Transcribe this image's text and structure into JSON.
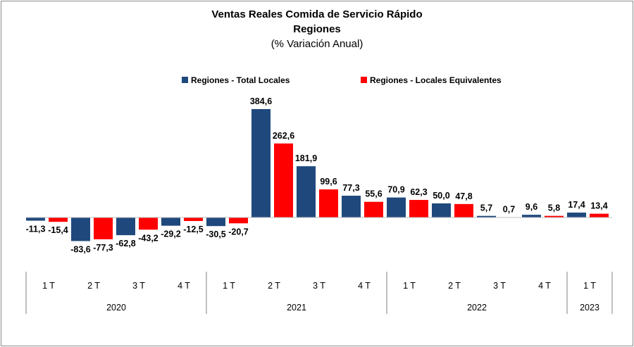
{
  "chart_data": {
    "type": "bar",
    "title": "Ventas Reales Comida de Servicio Rápido",
    "title_line2": "Regiones",
    "subtitle": "(% Variación Anual)",
    "legend_position": "top-center",
    "grid": false,
    "categories": [
      "1 T",
      "2 T",
      "3 T",
      "4 T",
      "1 T",
      "2 T",
      "3 T",
      "4 T",
      "1 T",
      "2 T",
      "3 T",
      "4 T",
      "1 T"
    ],
    "years": [
      {
        "label": "2020",
        "quarters": 4
      },
      {
        "label": "2021",
        "quarters": 4
      },
      {
        "label": "2022",
        "quarters": 4
      },
      {
        "label": "2023",
        "quarters": 1
      }
    ],
    "series": [
      {
        "name": "Regiones - Total Locales",
        "color": "#1f497d",
        "values": [
          -11.3,
          -83.6,
          -62.8,
          -29.2,
          -30.5,
          384.6,
          181.9,
          77.3,
          70.9,
          50.0,
          5.7,
          9.6,
          17.4
        ],
        "labels": [
          "-11,3",
          "-83,6",
          "-62,8",
          "-29,2",
          "-30,5",
          "384,6",
          "181,9",
          "77,3",
          "70,9",
          "50,0",
          "5,7",
          "9,6",
          "17,4"
        ]
      },
      {
        "name": "Regiones - Locales Equivalentes",
        "color": "#ff0000",
        "values": [
          -15.4,
          -77.3,
          -43.2,
          -12.5,
          -20.7,
          262.6,
          99.6,
          55.6,
          62.3,
          47.8,
          0.7,
          5.8,
          13.4
        ],
        "labels": [
          "-15,4",
          "-77,3",
          "-43,2",
          "-12,5",
          "-20,7",
          "262,6",
          "99,6",
          "55,6",
          "62,3",
          "47,8",
          "0,7",
          "5,8",
          "13,4"
        ]
      }
    ]
  }
}
